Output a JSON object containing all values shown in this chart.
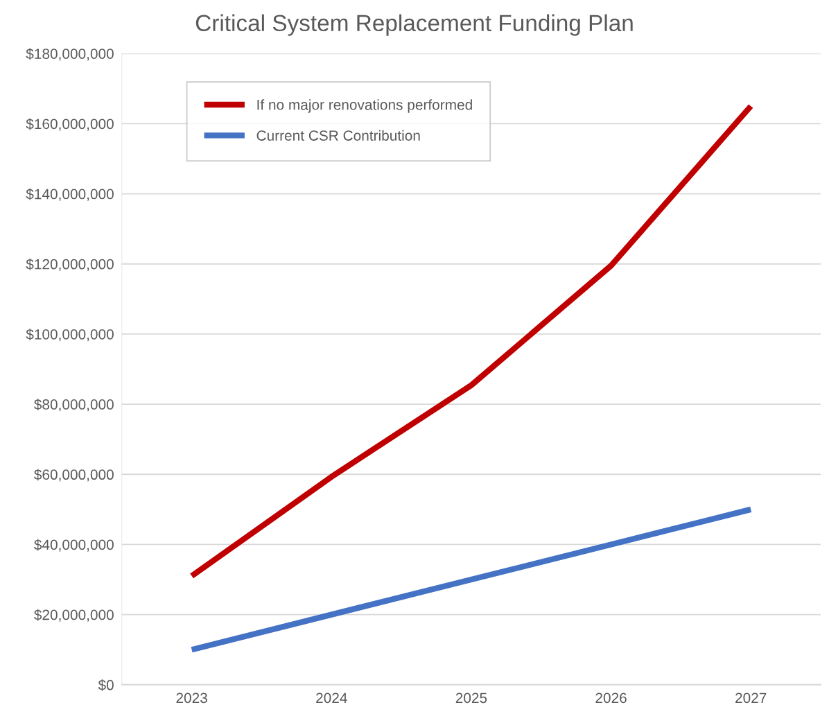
{
  "chart_data": {
    "type": "line",
    "title": "Critical System Replacement Funding Plan",
    "categories": [
      "2023",
      "2024",
      "2025",
      "2026",
      "2027"
    ],
    "series": [
      {
        "name": "If no major renovations performed",
        "color": "#c00000",
        "values": [
          31000000,
          59300000,
          85400000,
          119500000,
          165000000
        ]
      },
      {
        "name": "Current CSR Contribution",
        "color": "#4472c4",
        "values": [
          10000000,
          20000000,
          30000000,
          40000000,
          50000000
        ]
      }
    ],
    "ylim": [
      0,
      180000000
    ],
    "yticks": [
      {
        "value": 0,
        "label": "$0"
      },
      {
        "value": 20000000,
        "label": "$20,000,000"
      },
      {
        "value": 40000000,
        "label": "$40,000,000"
      },
      {
        "value": 60000000,
        "label": "$60,000,000"
      },
      {
        "value": 80000000,
        "label": "$80,000,000"
      },
      {
        "value": 100000000,
        "label": "$100,000,000"
      },
      {
        "value": 120000000,
        "label": "$120,000,000"
      },
      {
        "value": 140000000,
        "label": "$140,000,000"
      },
      {
        "value": 160000000,
        "label": "$160,000,000"
      },
      {
        "value": 180000000,
        "label": "$180,000,000"
      }
    ],
    "grid": "y",
    "legend": "top left",
    "marker": "none",
    "line_style": "solid"
  }
}
